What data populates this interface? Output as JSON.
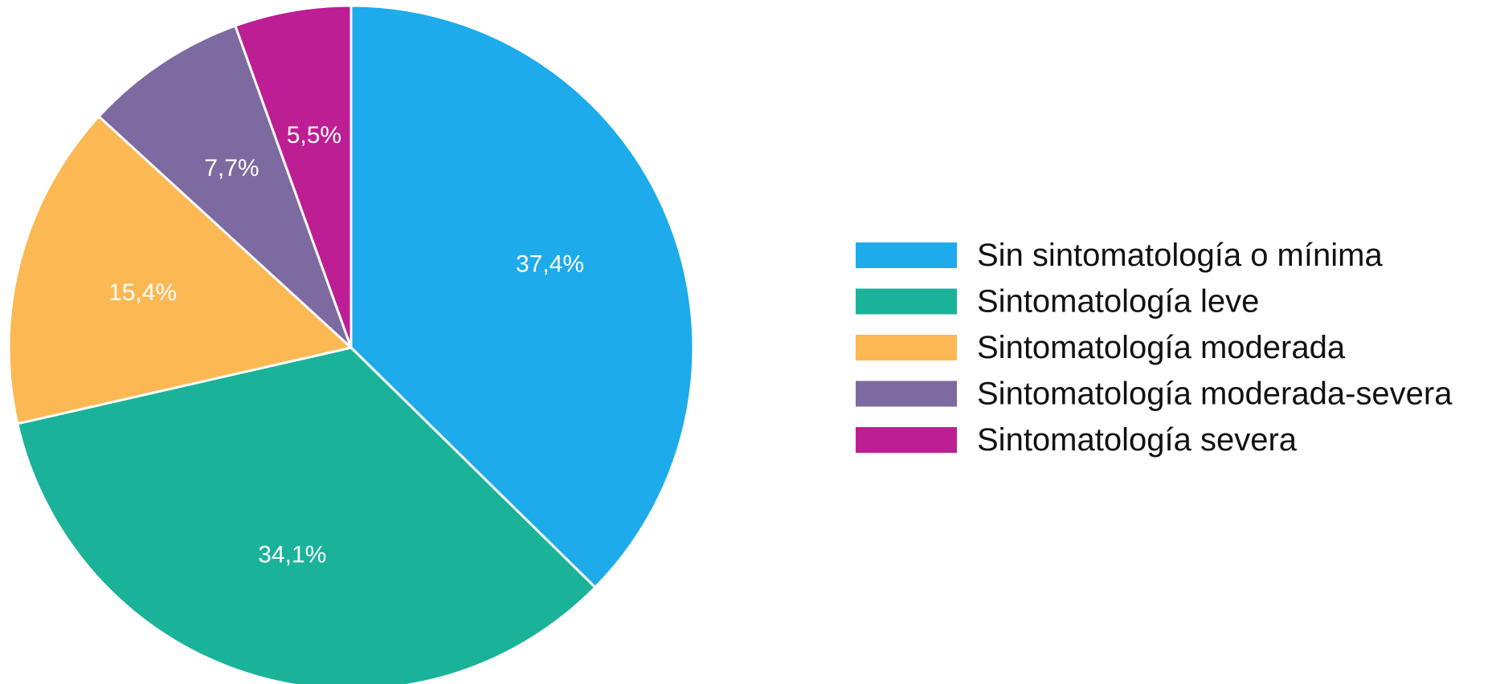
{
  "chart_data": {
    "type": "pie",
    "start_angle": "12 o'clock",
    "direction": "clockwise",
    "legend_position": "right",
    "slices": [
      {
        "label": "Sin sintomatología o mínima",
        "value": 37.4,
        "display": "37,4%",
        "color": "#1EABEB"
      },
      {
        "label": "Sintomatología leve",
        "value": 34.1,
        "display": "34,1%",
        "color": "#1AB399"
      },
      {
        "label": "Sintomatología moderada",
        "value": 15.4,
        "display": "15,4%",
        "color": "#FBB853"
      },
      {
        "label": "Sintomatología moderada-severa",
        "value": 7.7,
        "display": "7,7%",
        "color": "#7D6AA0"
      },
      {
        "label": "Sintomatología severa",
        "value": 5.5,
        "display": "5,5%",
        "color": "#BE1E93"
      }
    ]
  }
}
